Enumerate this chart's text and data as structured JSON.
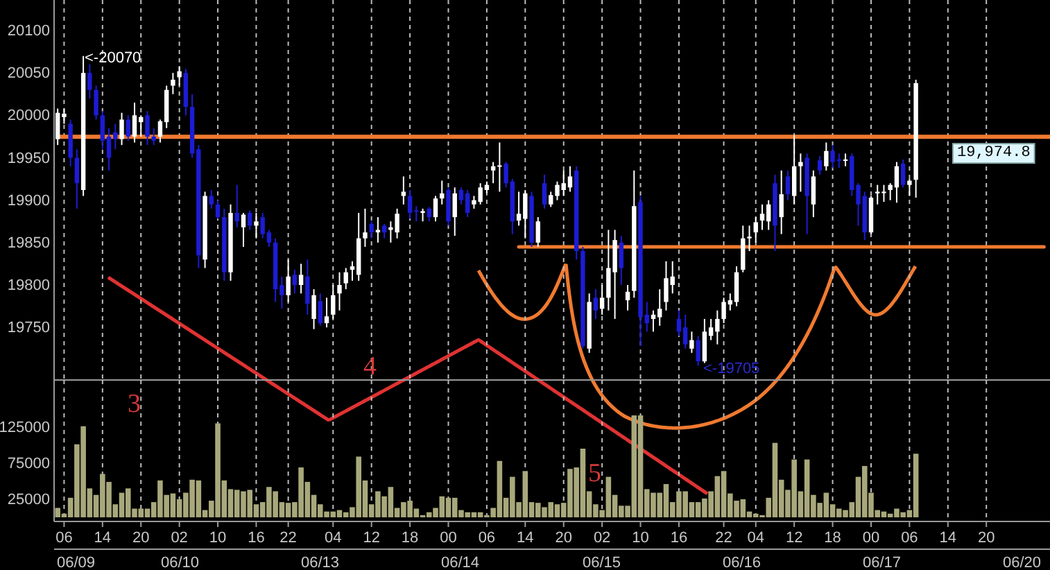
{
  "chart_data": [
    {
      "type": "candlestick",
      "categories": [
        null,
        "06",
        null,
        null,
        null,
        null,
        null,
        "14",
        null,
        null,
        null,
        null,
        null,
        "20",
        null,
        null,
        null,
        null,
        null,
        "02",
        null,
        null,
        null,
        null,
        null,
        "10",
        null,
        null,
        null,
        null,
        null,
        "16",
        null,
        null,
        null,
        null,
        "22",
        null,
        null,
        null,
        null,
        null,
        null,
        "04",
        null,
        null,
        null,
        null,
        null,
        "12",
        null,
        null,
        null,
        null,
        null,
        "18",
        null,
        null,
        null,
        null,
        null,
        "00",
        null,
        null,
        null,
        null,
        null,
        "06",
        null,
        null,
        null,
        null,
        null,
        "14",
        null,
        null,
        null,
        null,
        null,
        "20",
        null,
        null,
        null,
        null,
        null,
        "02",
        null,
        null,
        null,
        null,
        null,
        "10",
        null,
        null,
        null,
        null,
        null,
        "16",
        null,
        null,
        null,
        null,
        null,
        null,
        "22",
        null,
        null,
        null,
        null,
        "04",
        null,
        null,
        null,
        null,
        null,
        "12",
        null,
        null,
        null,
        null,
        null,
        "18",
        null,
        null,
        null,
        null,
        null,
        "00",
        null,
        null,
        null,
        null,
        null,
        "06",
        null,
        null,
        null,
        null,
        null,
        "14",
        null,
        null,
        null,
        null,
        null,
        "20",
        null,
        null,
        null,
        null,
        null,
        null,
        null,
        null,
        null
      ],
      "ohlc": [
        [
          19972,
          20008,
          19965,
          20003
        ],
        [
          19998,
          20008,
          19990,
          20002
        ],
        [
          19990,
          19995,
          19940,
          19950
        ],
        [
          19950,
          19960,
          19890,
          19920
        ],
        [
          19912,
          20070,
          19905,
          20050
        ],
        [
          20050,
          20060,
          20020,
          20030
        ],
        [
          20030,
          20035,
          19995,
          20000
        ],
        [
          20000,
          20005,
          19960,
          19970
        ],
        [
          19975,
          19985,
          19935,
          19950
        ],
        [
          19980,
          19990,
          19960,
          19972
        ],
        [
          19972,
          20003,
          19965,
          19995
        ],
        [
          19995,
          20000,
          19970,
          19975
        ],
        [
          19975,
          20015,
          19968,
          20000
        ],
        [
          19992,
          20000,
          19975,
          19998
        ],
        [
          20000,
          20005,
          19965,
          19975
        ],
        [
          19975,
          19985,
          19965,
          19970
        ],
        [
          19975,
          19995,
          19968,
          19993
        ],
        [
          19992,
          20035,
          19985,
          20030
        ],
        [
          20035,
          20050,
          20025,
          20042
        ],
        [
          20045,
          20058,
          20035,
          20052
        ],
        [
          20050,
          20055,
          20000,
          20010
        ],
        [
          20010,
          20025,
          19950,
          19955
        ],
        [
          19960,
          19965,
          19820,
          19835
        ],
        [
          19830,
          19910,
          19820,
          19905
        ],
        [
          19905,
          19912,
          19890,
          19895
        ],
        [
          19895,
          19900,
          19878,
          19880
        ],
        [
          19880,
          19890,
          19805,
          19815
        ],
        [
          19815,
          19895,
          19805,
          19885
        ],
        [
          19885,
          19918,
          19868,
          19875
        ],
        [
          19868,
          19885,
          19845,
          19883
        ],
        [
          19885,
          19888,
          19865,
          19870
        ],
        [
          19870,
          19885,
          19855,
          19875
        ],
        [
          19880,
          19885,
          19855,
          19860
        ],
        [
          19862,
          19865,
          19845,
          19850
        ],
        [
          19850,
          19855,
          19780,
          19795
        ],
        [
          19800,
          19810,
          19772,
          19788
        ],
        [
          19788,
          19830,
          19780,
          19810
        ],
        [
          19812,
          19818,
          19790,
          19800
        ],
        [
          19800,
          19825,
          19790,
          19812
        ],
        [
          19810,
          19830,
          19765,
          19778
        ],
        [
          19760,
          19795,
          19748,
          19788
        ],
        [
          19781,
          19790,
          19752,
          19755
        ],
        [
          19755,
          19785,
          19750,
          19763
        ],
        [
          19765,
          19800,
          19760,
          19788
        ],
        [
          19790,
          19815,
          19770,
          19800
        ],
        [
          19802,
          19820,
          19795,
          19815
        ],
        [
          19818,
          19828,
          19805,
          19822
        ],
        [
          19812,
          19885,
          19805,
          19855
        ],
        [
          19855,
          19890,
          19845,
          19862
        ],
        [
          19872,
          19875,
          19855,
          19862
        ],
        [
          19862,
          19880,
          19850,
          19865
        ],
        [
          19870,
          19872,
          19855,
          19862
        ],
        [
          19865,
          19875,
          19850,
          19868
        ],
        [
          19862,
          19890,
          19855,
          19884
        ],
        [
          19905,
          19928,
          19895,
          19910
        ],
        [
          19905,
          19912,
          19878,
          19885
        ],
        [
          19888,
          19893,
          19875,
          19887
        ],
        [
          19885,
          19890,
          19875,
          19887
        ],
        [
          19890,
          19892,
          19875,
          19880
        ],
        [
          19880,
          19905,
          19875,
          19902
        ],
        [
          19902,
          19923,
          19895,
          19908
        ],
        [
          19912,
          19915,
          19870,
          19875
        ],
        [
          19880,
          19915,
          19858,
          19908
        ],
        [
          19912,
          19915,
          19895,
          19900
        ],
        [
          19908,
          19912,
          19880,
          19885
        ],
        [
          19895,
          19905,
          19890,
          19900
        ],
        [
          19898,
          19920,
          19895,
          19915
        ],
        [
          19912,
          19922,
          19908,
          19918
        ],
        [
          19935,
          19945,
          19920,
          19940
        ],
        [
          19940,
          19968,
          19910,
          19941
        ],
        [
          19943,
          19945,
          19915,
          19920
        ],
        [
          19922,
          19925,
          19860,
          19875
        ],
        [
          19876,
          19910,
          19870,
          19884
        ],
        [
          19878,
          19912,
          19855,
          19908
        ],
        [
          19905,
          19910,
          19845,
          19850
        ],
        [
          19850,
          19880,
          19845,
          19875
        ],
        [
          19920,
          19930,
          19890,
          19895
        ],
        [
          19895,
          19910,
          19892,
          19906
        ],
        [
          19905,
          19922,
          19900,
          19918
        ],
        [
          19912,
          19935,
          19905,
          19920
        ],
        [
          19915,
          19940,
          19910,
          19928
        ],
        [
          19935,
          19940,
          19830,
          19840
        ],
        [
          19840,
          19845,
          19725,
          19728
        ],
        [
          19725,
          19790,
          19720,
          19780
        ],
        [
          19785,
          19795,
          19760,
          19770
        ],
        [
          19772,
          19800,
          19765,
          19785
        ],
        [
          19785,
          19865,
          19770,
          19820
        ],
        [
          19815,
          19865,
          19760,
          19853
        ],
        [
          19850,
          19858,
          19800,
          19820
        ],
        [
          19782,
          19800,
          19770,
          19792
        ],
        [
          19793,
          19935,
          19785,
          19893
        ],
        [
          19898,
          19905,
          19728,
          19762
        ],
        [
          19765,
          19780,
          19745,
          19755
        ],
        [
          19760,
          19770,
          19745,
          19765
        ],
        [
          19762,
          19795,
          19752,
          19772
        ],
        [
          19780,
          19828,
          19770,
          19808
        ],
        [
          19800,
          19828,
          19790,
          19810
        ],
        [
          19760,
          19770,
          19740,
          19745
        ],
        [
          19750,
          19765,
          19725,
          19730
        ],
        [
          19725,
          19745,
          19720,
          19735
        ],
        [
          19735,
          19740,
          19705,
          19710
        ],
        [
          19710,
          19760,
          19708,
          19745
        ],
        [
          19740,
          19760,
          19735,
          19750
        ],
        [
          19745,
          19770,
          19730,
          19760
        ],
        [
          19760,
          19785,
          19755,
          19780
        ],
        [
          19777,
          19790,
          19770,
          19782
        ],
        [
          19780,
          19822,
          19775,
          19815
        ],
        [
          19818,
          19870,
          19815,
          19855
        ],
        [
          19855,
          19870,
          19840,
          19857
        ],
        [
          19862,
          19880,
          19850,
          19874
        ],
        [
          19876,
          19895,
          19865,
          19884
        ],
        [
          19875,
          19900,
          19865,
          19895
        ],
        [
          19920,
          19930,
          19840,
          19870
        ],
        [
          19880,
          19935,
          19860,
          19907
        ],
        [
          19928,
          19935,
          19900,
          19907
        ],
        [
          19905,
          19977,
          19895,
          19940
        ],
        [
          19940,
          19955,
          19910,
          19945
        ],
        [
          19950,
          19955,
          19860,
          19905
        ],
        [
          19895,
          19935,
          19880,
          19928
        ],
        [
          19947,
          19952,
          19930,
          19935
        ],
        [
          19940,
          19968,
          19935,
          19958
        ],
        [
          19958,
          19965,
          19938,
          19945
        ],
        [
          19948,
          19955,
          19938,
          19947
        ],
        [
          19947,
          19955,
          19940,
          19948
        ],
        [
          19952,
          19955,
          19905,
          19912
        ],
        [
          19918,
          19920,
          19870,
          19895
        ],
        [
          19905,
          19910,
          19853,
          19862
        ],
        [
          19862,
          19905,
          19860,
          19903
        ],
        [
          19908,
          19918,
          19895,
          19910
        ],
        [
          19910,
          19918,
          19898,
          19910
        ],
        [
          19912,
          19920,
          19900,
          19918
        ],
        [
          19915,
          19945,
          19897,
          19940
        ],
        [
          19943,
          19948,
          19915,
          19918
        ],
        [
          19918,
          19925,
          19905,
          19923
        ],
        [
          19924,
          20042,
          19903,
          20038
        ],
        null,
        null,
        null,
        null,
        null,
        null,
        null,
        null,
        null,
        null,
        null,
        null,
        null,
        null,
        null,
        null,
        null,
        null,
        null,
        null
      ],
      "series": [
        {
          "type": "line",
          "color": "#f07a30",
          "values": [
            null,
            null,
            null,
            null,
            null,
            null,
            null,
            null,
            null,
            null,
            null,
            null,
            null,
            null,
            null,
            null,
            null,
            null,
            null,
            null,
            null,
            null,
            null,
            null,
            null,
            null,
            null,
            null,
            null,
            null,
            null,
            null,
            null,
            null,
            null,
            null,
            null,
            null,
            null,
            null,
            null,
            null,
            null,
            null,
            null,
            null,
            null,
            null,
            null,
            null,
            null,
            null,
            null,
            null,
            null,
            null,
            null,
            null,
            null,
            null,
            null,
            null,
            null,
            null,
            null,
            null,
            null,
            null,
            null,
            null,
            null,
            null,
            19845,
            19845,
            19845,
            19845,
            19845,
            19845,
            19845,
            19845,
            19845,
            19845,
            19845,
            19845,
            19845,
            19845,
            19845,
            19845,
            19845,
            19845,
            19845,
            19845,
            19845,
            19845,
            19845,
            19845,
            19845,
            19845,
            19845,
            19845,
            19845,
            19845,
            19845,
            19845,
            19845,
            19845,
            19845,
            19845,
            19845,
            19845,
            19845,
            19845,
            19845,
            19845,
            19845,
            19845,
            19845,
            19845,
            19845,
            19845,
            19845,
            19845,
            19845,
            19845,
            19845,
            19845,
            19845,
            19845,
            19845,
            19845,
            19845,
            19845,
            19845,
            19845,
            19845,
            19845,
            19845,
            19845,
            19845,
            19845,
            19845,
            19845,
            19845,
            19845,
            19845,
            19845,
            19845,
            19845,
            19845,
            19845,
            19845,
            19845,
            19845,
            19845,
            19845
          ]
        }
      ],
      "ylim": [
        19688,
        20136
      ],
      "yticks": [
        19750,
        19800,
        19850,
        19900,
        19950,
        20000,
        20050,
        20100
      ],
      "ref_lines": [
        {
          "axis": "y",
          "value": 19974.8,
          "label": "19,974.8",
          "color": "#f07a30"
        }
      ],
      "annotations": [
        "3",
        "4",
        "5",
        "<-20070",
        "<-19705"
      ],
      "grid": "x",
      "tick_labels": "y"
    },
    {
      "type": "bar",
      "categories": [
        null,
        "06",
        null,
        null,
        null,
        null,
        null,
        "14",
        null,
        null,
        null,
        null,
        null,
        "20",
        null,
        null,
        null,
        null,
        null,
        "02",
        null,
        null,
        null,
        null,
        null,
        "10",
        null,
        null,
        null,
        null,
        null,
        "16",
        null,
        null,
        null,
        null,
        "22",
        null,
        null,
        null,
        null,
        null,
        null,
        "04",
        null,
        null,
        null,
        null,
        null,
        "12",
        null,
        null,
        null,
        null,
        null,
        "18",
        null,
        null,
        null,
        null,
        null,
        "00",
        null,
        null,
        null,
        null,
        null,
        "06",
        null,
        null,
        null,
        null,
        null,
        "14",
        null,
        null,
        null,
        null,
        null,
        "20",
        null,
        null,
        null,
        null,
        null,
        "02",
        null,
        null,
        null,
        null,
        null,
        "10",
        null,
        null,
        null,
        null,
        null,
        "16",
        null,
        null,
        null,
        null,
        null,
        null,
        "22",
        null,
        null,
        null,
        null,
        "04",
        null,
        null,
        null,
        null,
        null,
        "12",
        null,
        null,
        null,
        null,
        null,
        "18",
        null,
        null,
        null,
        null,
        null,
        "00",
        null,
        null,
        null,
        null,
        null,
        "06",
        null,
        null,
        null,
        null,
        null,
        "14",
        null,
        null,
        null,
        null,
        null,
        "20",
        null,
        null,
        null,
        null,
        null,
        null,
        null,
        null,
        null
      ],
      "annotations": [
        "06/09",
        "06/10",
        "06/13",
        "06/14",
        "06/15",
        "06/16",
        "06/17",
        "06/20"
      ],
      "color": "#a8a87c",
      "values": [
        13000,
        5000,
        27000,
        101000,
        126000,
        40000,
        31000,
        60000,
        49000,
        18000,
        34000,
        40000,
        12000,
        12000,
        12000,
        21000,
        51000,
        31000,
        33000,
        25000,
        34000,
        52000,
        51000,
        10000,
        23000,
        130000,
        51000,
        39000,
        38000,
        36000,
        38000,
        18000,
        21000,
        42000,
        36000,
        21000,
        20000,
        21000,
        69000,
        49000,
        31000,
        18000,
        8000,
        8000,
        10000,
        7000,
        14000,
        84000,
        51000,
        18000,
        36000,
        29000,
        42000,
        13000,
        21000,
        23000,
        12000,
        3000,
        7000,
        13000,
        29000,
        27000,
        27000,
        10000,
        7000,
        7000,
        7000,
        3000,
        13000,
        78000,
        27000,
        56000,
        21000,
        64000,
        21000,
        20000,
        14000,
        21000,
        18000,
        20000,
        67000,
        69000,
        95000,
        36000,
        18000,
        10000,
        56000,
        31000,
        16000,
        16000,
        141000,
        141000,
        39000,
        34000,
        34000,
        46000,
        21000,
        36000,
        36000,
        21000,
        21000,
        26000,
        36000,
        57000,
        64000,
        33000,
        23000,
        25000,
        8000,
        5000,
        3000,
        27000,
        103000,
        52000,
        38000,
        80000,
        36000,
        80000,
        31000,
        20000,
        34000,
        18000,
        12000,
        10000,
        21000,
        56000,
        71000,
        34000,
        10000,
        8000,
        5000,
        12000,
        7000,
        10000,
        88000,
        null,
        null,
        null,
        null,
        null,
        null,
        null,
        null,
        null,
        null,
        null,
        null,
        null,
        null,
        null,
        null,
        null,
        null,
        null,
        null
      ],
      "ylim": [
        0,
        190000
      ],
      "yticks": [
        25000,
        75000,
        125000
      ],
      "grid": "x"
    }
  ]
}
